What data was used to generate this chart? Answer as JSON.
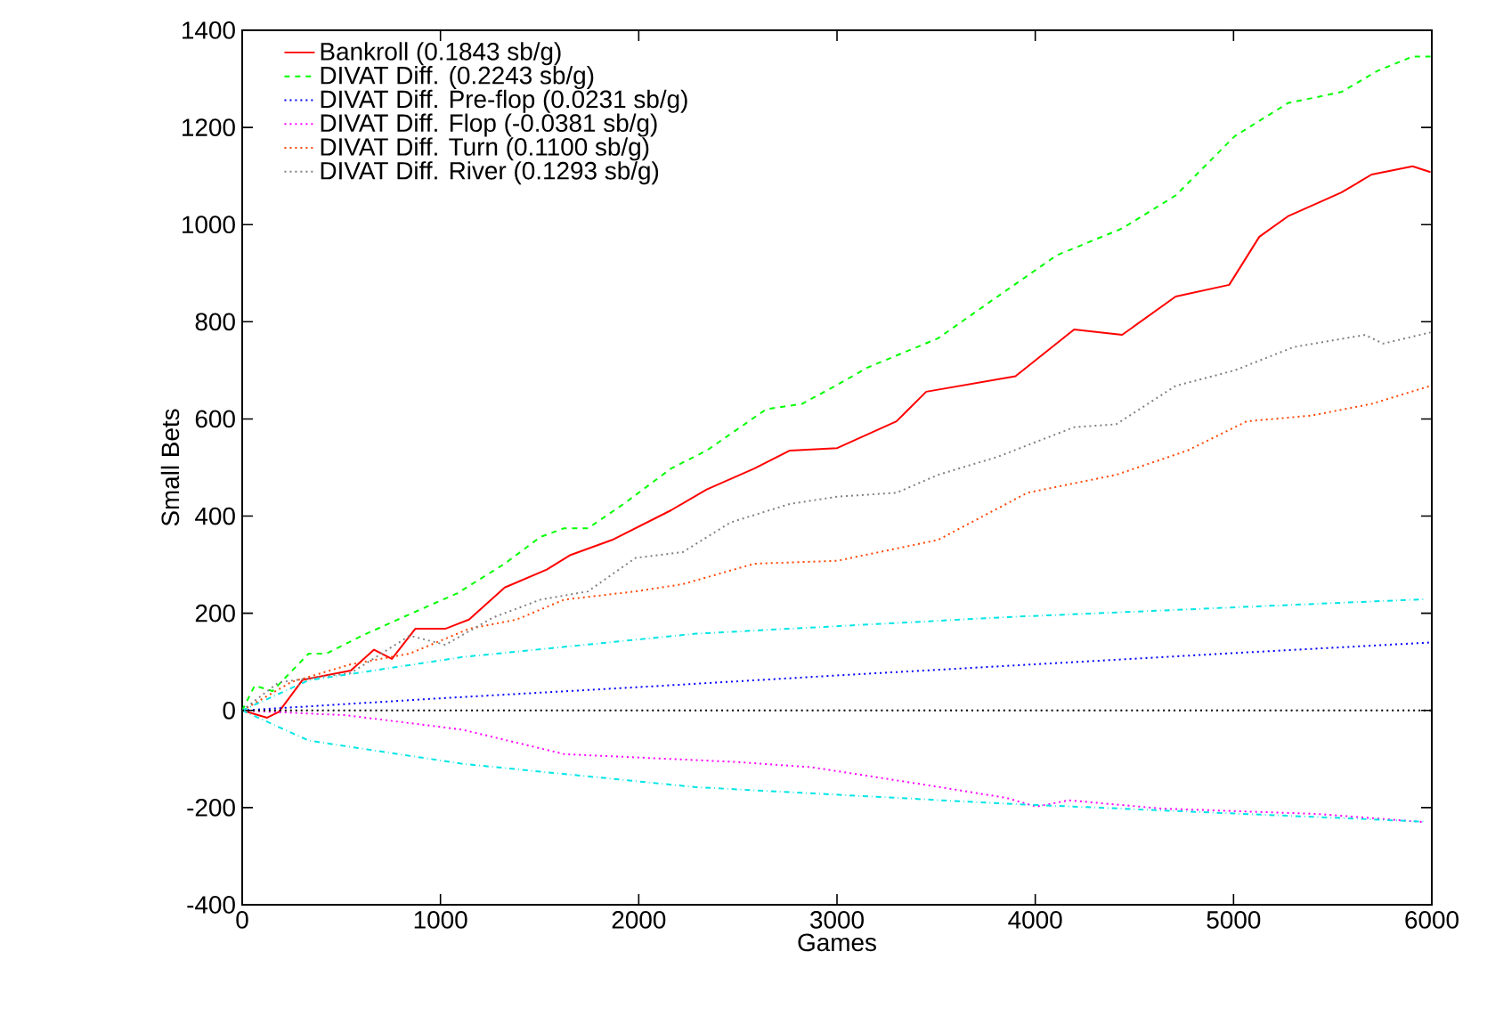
{
  "chart_data": {
    "type": "line",
    "xlabel": "Games",
    "ylabel": "Small Bets",
    "xlim": [
      0,
      6000
    ],
    "xticks": [
      0,
      1000,
      2000,
      3000,
      4000,
      5000,
      6000
    ],
    "ylim": [
      -400,
      1400
    ],
    "yticks": [
      -400,
      -200,
      0,
      200,
      400,
      600,
      800,
      1000,
      1200,
      1400
    ],
    "legend": "top left",
    "grid": false,
    "marker": "none",
    "ref_lines": [
      {
        "axis": "y",
        "value": 0,
        "color": "#000000",
        "line_style": "dotted"
      }
    ],
    "series": [
      {
        "name": "Bankroll (0.1843 sb/g)",
        "color": "#ff0000",
        "line_style": "solid",
        "x": [
          0,
          126,
          185,
          305,
          548,
          665,
          755,
          873,
          1024,
          1144,
          1324,
          1536,
          1656,
          1866,
          2163,
          2343,
          2583,
          2762,
          3001,
          3300,
          3450,
          3900,
          4196,
          4438,
          4708,
          4978,
          5130,
          5274,
          5544,
          5696,
          5903,
          5993
        ],
        "values": [
          0,
          -15,
          -3,
          63,
          82,
          125,
          106,
          168,
          168,
          187,
          253,
          290,
          320,
          351,
          412,
          455,
          498,
          535,
          540,
          595,
          656,
          688,
          784,
          773,
          852,
          876,
          975,
          1017,
          1066,
          1103,
          1120,
          1108
        ]
      },
      {
        "name": "DIVAT Diff. (0.2243 sb/g)",
        "color": "#00ff00",
        "line_style": "dashed",
        "x": [
          0,
          63,
          153,
          335,
          425,
          605,
          845,
          1084,
          1324,
          1504,
          1624,
          1744,
          1924,
          2163,
          2343,
          2643,
          2823,
          3001,
          3150,
          3510,
          3810,
          4109,
          4438,
          4708,
          5006,
          5274,
          5544,
          5724,
          5903,
          5993
        ],
        "values": [
          0,
          51,
          40,
          117,
          117,
          154,
          198,
          241,
          302,
          357,
          375,
          375,
          425,
          498,
          535,
          620,
          631,
          670,
          705,
          766,
          852,
          937,
          992,
          1060,
          1182,
          1250,
          1273,
          1316,
          1346,
          1346
        ]
      },
      {
        "name": "DIVAT Diff. Pre-flop (0.0231 sb/g)",
        "color": "#0000ff",
        "line_style": "dotted",
        "x": [
          0,
          1000,
          2000,
          3000,
          4000,
          5000,
          6000
        ],
        "values": [
          0,
          25,
          48,
          72,
          95,
          118,
          140
        ]
      },
      {
        "name": "DIVAT Diff. Flop (-0.0381 sb/g)",
        "color": "#ff00ff",
        "line_style": "dotted",
        "x": [
          0,
          530,
          1114,
          1626,
          1896,
          2489,
          2875,
          3459,
          3854,
          4006,
          4169,
          4636,
          5418,
          5966
        ],
        "values": [
          0,
          -10,
          -40,
          -90,
          -95,
          -106,
          -117,
          -154,
          -180,
          -198,
          -185,
          -202,
          -213,
          -230
        ]
      },
      {
        "name": "DIVAT Diff. Turn (0.1100 sb/g)",
        "color": "#ff4500",
        "line_style": "dotted",
        "x": [
          0,
          245,
          548,
          845,
          1144,
          1384,
          1624,
          1984,
          2223,
          2583,
          3001,
          3510,
          3960,
          4408,
          4768,
          5066,
          5394,
          5696,
          5993
        ],
        "values": [
          0,
          58,
          95,
          117,
          168,
          187,
          228,
          245,
          260,
          302,
          308,
          351,
          448,
          485,
          535,
          595,
          607,
          631,
          668
        ]
      },
      {
        "name": "DIVAT Diff. River (0.1293 sb/g)",
        "color": "#808080",
        "line_style": "dotted",
        "x": [
          0,
          185,
          548,
          845,
          1024,
          1264,
          1504,
          1744,
          1984,
          2223,
          2463,
          2762,
          3001,
          3300,
          3510,
          3810,
          4196,
          4408,
          4708,
          5006,
          5304,
          5664,
          5754,
          5993
        ],
        "values": [
          0,
          58,
          77,
          154,
          135,
          191,
          228,
          245,
          314,
          326,
          387,
          425,
          440,
          448,
          485,
          522,
          583,
          589,
          668,
          700,
          748,
          773,
          755,
          778
        ]
      },
      {
        "color": "#00e5e5",
        "line_style": "dashdot",
        "x": [
          0,
          335,
          1114,
          2290,
          3854,
          5966
        ],
        "values": [
          0,
          62,
          110,
          158,
          192,
          229
        ]
      },
      {
        "color": "#00e5e5",
        "line_style": "dashdot",
        "x": [
          0,
          335,
          1114,
          2290,
          3854,
          5966
        ],
        "values": [
          0,
          -62,
          -110,
          -158,
          -192,
          -229
        ]
      }
    ]
  }
}
